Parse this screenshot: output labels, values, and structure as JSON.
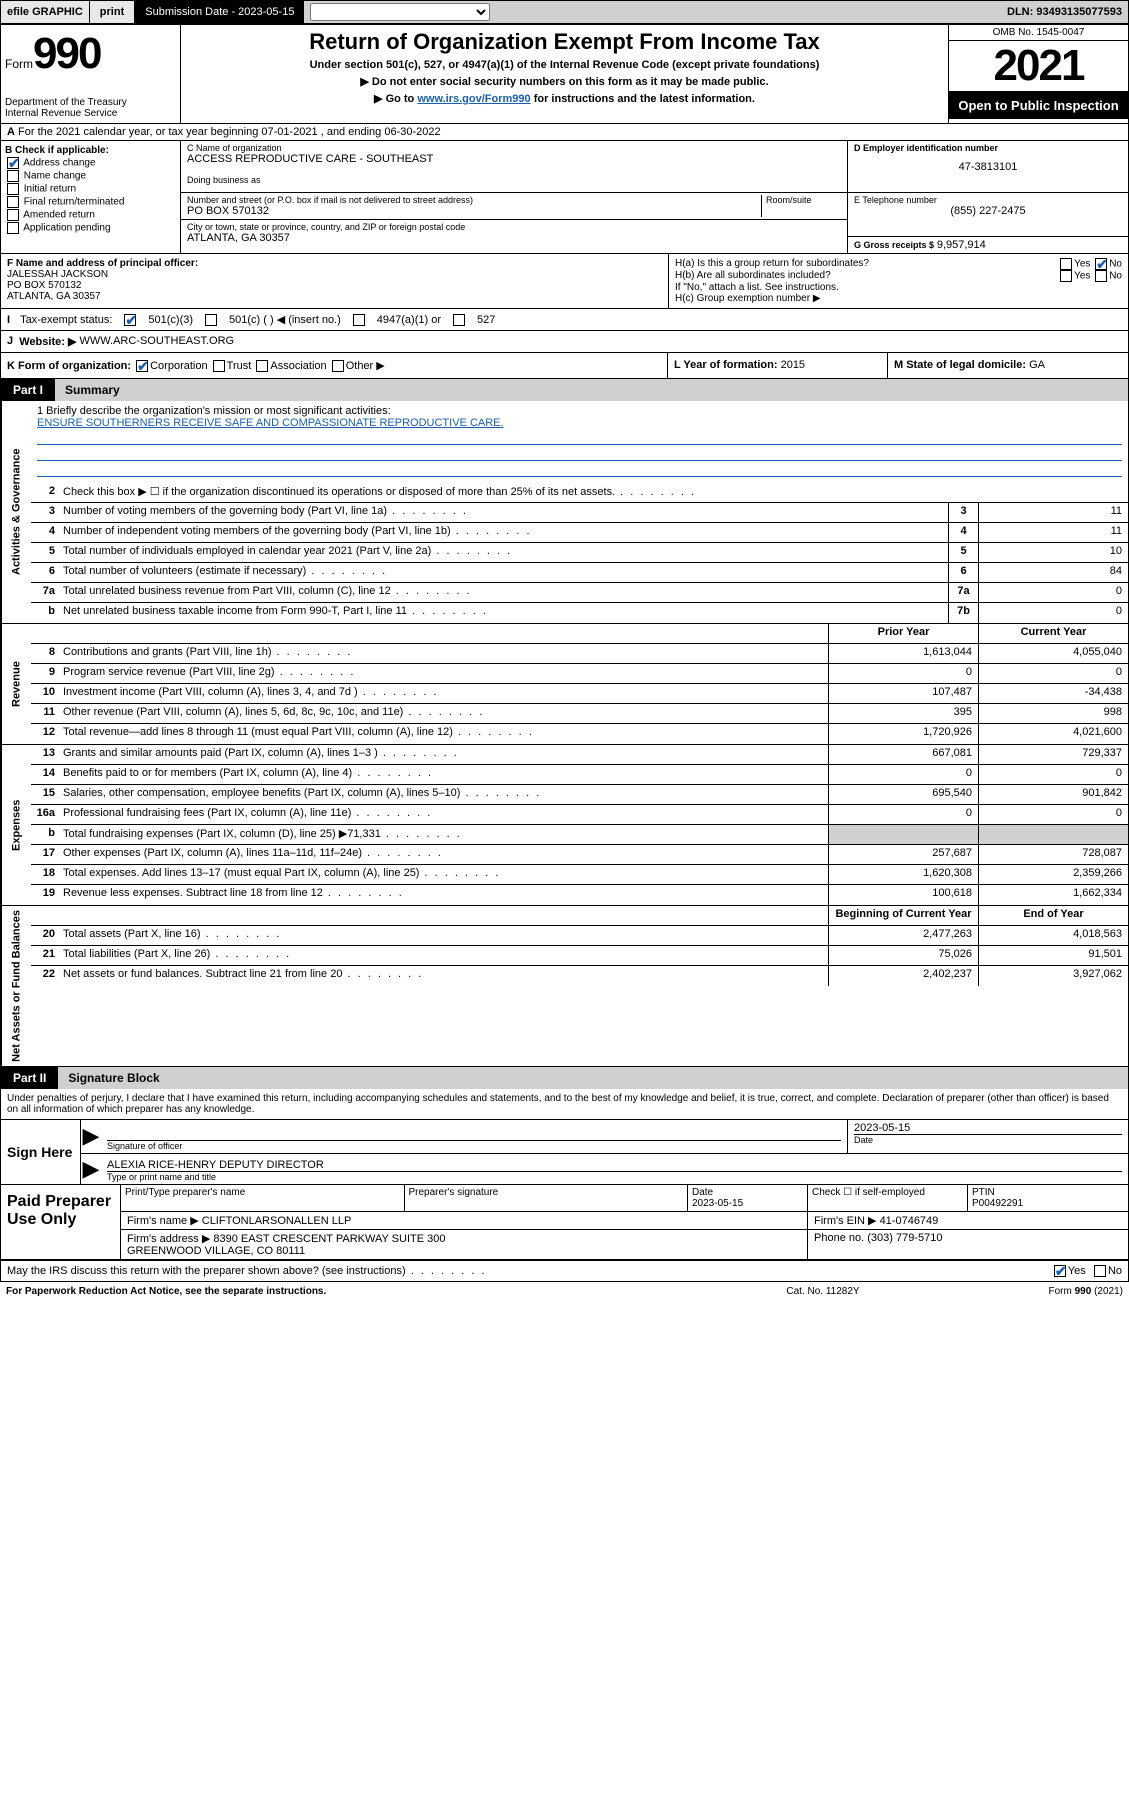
{
  "topbar": {
    "efile": "efile GRAPHIC",
    "print": "print",
    "subdate_label": "Submission Date - 2023-05-15",
    "dln": "DLN: 93493135077593"
  },
  "header": {
    "form_word": "Form",
    "form_num": "990",
    "dept": "Department of the Treasury\nInternal Revenue Service",
    "title": "Return of Organization Exempt From Income Tax",
    "sub": "Under section 501(c), 527, or 4947(a)(1) of the Internal Revenue Code (except private foundations)",
    "arrow1": "▶ Do not enter social security numbers on this form as it may be made public.",
    "arrow2_pre": "▶ Go to ",
    "arrow2_link": "www.irs.gov/Form990",
    "arrow2_post": " for instructions and the latest information.",
    "omb": "OMB No. 1545-0047",
    "year": "2021",
    "open": "Open to Public Inspection"
  },
  "row_a": "For the 2021 calendar year, or tax year beginning 07-01-2021   , and ending 06-30-2022",
  "col_b": {
    "title": "B Check if applicable:",
    "items": [
      "Address change",
      "Name change",
      "Initial return",
      "Final return/terminated",
      "Amended return",
      "Application pending"
    ],
    "checked": [
      true,
      false,
      false,
      false,
      false,
      false
    ]
  },
  "col_c": {
    "name_lbl": "C Name of organization",
    "name": "ACCESS REPRODUCTIVE CARE - SOUTHEAST",
    "dba_lbl": "Doing business as",
    "dba": "",
    "addr_lbl": "Number and street (or P.O. box if mail is not delivered to street address)",
    "room_lbl": "Room/suite",
    "addr": "PO BOX 570132",
    "city_lbl": "City or town, state or province, country, and ZIP or foreign postal code",
    "city": "ATLANTA, GA  30357"
  },
  "col_d": {
    "ein_lbl": "D Employer identification number",
    "ein": "47-3813101",
    "tel_lbl": "E Telephone number",
    "tel": "(855) 227-2475",
    "gross_lbl": "G Gross receipts $",
    "gross": "9,957,914"
  },
  "row_f": {
    "lbl": "F Name and address of principal officer:",
    "name": "JALESSAH JACKSON",
    "addr1": "PO BOX 570132",
    "addr2": "ATLANTA, GA  30357",
    "ha": "H(a)  Is this a group return for subordinates?",
    "hb": "H(b)  Are all subordinates included?",
    "hb_note": "If \"No,\" attach a list. See instructions.",
    "hc": "H(c)  Group exemption number ▶",
    "yes": "Yes",
    "no": "No"
  },
  "row_i": {
    "lbl": "Tax-exempt status:",
    "opts": [
      "501(c)(3)",
      "501(c) (  ) ◀ (insert no.)",
      "4947(a)(1) or",
      "527"
    ]
  },
  "row_j": {
    "lbl": "Website: ▶",
    "val": "WWW.ARC-SOUTHEAST.ORG"
  },
  "row_k": {
    "k1": "K Form of organization:",
    "k1_opts": [
      "Corporation",
      "Trust",
      "Association",
      "Other ▶"
    ],
    "k2_lbl": "L Year of formation:",
    "k2_val": "2015",
    "k3_lbl": "M State of legal domicile:",
    "k3_val": "GA"
  },
  "part1": {
    "num": "Part I",
    "title": "Summary"
  },
  "mission": {
    "lbl": "1   Briefly describe the organization's mission or most significant activities:",
    "val": "ENSURE SOUTHERNERS RECEIVE SAFE AND COMPASSIONATE REPRODUCTIVE CARE."
  },
  "gov_lines": [
    {
      "n": "2",
      "d": "Check this box ▶ ☐  if the organization discontinued its operations or disposed of more than 25% of its net assets.",
      "box": "",
      "amt": ""
    },
    {
      "n": "3",
      "d": "Number of voting members of the governing body (Part VI, line 1a)",
      "box": "3",
      "amt": "11"
    },
    {
      "n": "4",
      "d": "Number of independent voting members of the governing body (Part VI, line 1b)",
      "box": "4",
      "amt": "11"
    },
    {
      "n": "5",
      "d": "Total number of individuals employed in calendar year 2021 (Part V, line 2a)",
      "box": "5",
      "amt": "10"
    },
    {
      "n": "6",
      "d": "Total number of volunteers (estimate if necessary)",
      "box": "6",
      "amt": "84"
    },
    {
      "n": "7a",
      "d": "Total unrelated business revenue from Part VIII, column (C), line 12",
      "box": "7a",
      "amt": "0"
    },
    {
      "n": "b",
      "d": "Net unrelated business taxable income from Form 990-T, Part I, line 11",
      "box": "7b",
      "amt": "0"
    }
  ],
  "rev_hdr": {
    "prior": "Prior Year",
    "current": "Current Year"
  },
  "rev_lines": [
    {
      "n": "8",
      "d": "Contributions and grants (Part VIII, line 1h)",
      "p": "1,613,044",
      "c": "4,055,040"
    },
    {
      "n": "9",
      "d": "Program service revenue (Part VIII, line 2g)",
      "p": "0",
      "c": "0"
    },
    {
      "n": "10",
      "d": "Investment income (Part VIII, column (A), lines 3, 4, and 7d )",
      "p": "107,487",
      "c": "-34,438"
    },
    {
      "n": "11",
      "d": "Other revenue (Part VIII, column (A), lines 5, 6d, 8c, 9c, 10c, and 11e)",
      "p": "395",
      "c": "998"
    },
    {
      "n": "12",
      "d": "Total revenue—add lines 8 through 11 (must equal Part VIII, column (A), line 12)",
      "p": "1,720,926",
      "c": "4,021,600"
    }
  ],
  "exp_lines": [
    {
      "n": "13",
      "d": "Grants and similar amounts paid (Part IX, column (A), lines 1–3 )",
      "p": "667,081",
      "c": "729,337"
    },
    {
      "n": "14",
      "d": "Benefits paid to or for members (Part IX, column (A), line 4)",
      "p": "0",
      "c": "0"
    },
    {
      "n": "15",
      "d": "Salaries, other compensation, employee benefits (Part IX, column (A), lines 5–10)",
      "p": "695,540",
      "c": "901,842"
    },
    {
      "n": "16a",
      "d": "Professional fundraising fees (Part IX, column (A), line 11e)",
      "p": "0",
      "c": "0"
    },
    {
      "n": "b",
      "d": "Total fundraising expenses (Part IX, column (D), line 25) ▶71,331",
      "p": "",
      "c": "",
      "shaded": true
    },
    {
      "n": "17",
      "d": "Other expenses (Part IX, column (A), lines 11a–11d, 11f–24e)",
      "p": "257,687",
      "c": "728,087"
    },
    {
      "n": "18",
      "d": "Total expenses. Add lines 13–17 (must equal Part IX, column (A), line 25)",
      "p": "1,620,308",
      "c": "2,359,266"
    },
    {
      "n": "19",
      "d": "Revenue less expenses. Subtract line 18 from line 12",
      "p": "100,618",
      "c": "1,662,334"
    }
  ],
  "na_hdr": {
    "begin": "Beginning of Current Year",
    "end": "End of Year"
  },
  "na_lines": [
    {
      "n": "20",
      "d": "Total assets (Part X, line 16)",
      "p": "2,477,263",
      "c": "4,018,563"
    },
    {
      "n": "21",
      "d": "Total liabilities (Part X, line 26)",
      "p": "75,026",
      "c": "91,501"
    },
    {
      "n": "22",
      "d": "Net assets or fund balances. Subtract line 21 from line 20",
      "p": "2,402,237",
      "c": "3,927,062"
    }
  ],
  "part2": {
    "num": "Part II",
    "title": "Signature Block"
  },
  "sig": {
    "intro": "Under penalties of perjury, I declare that I have examined this return, including accompanying schedules and statements, and to the best of my knowledge and belief, it is true, correct, and complete. Declaration of preparer (other than officer) is based on all information of which preparer has any knowledge.",
    "sign_here": "Sign Here",
    "sig_officer": "Signature of officer",
    "date": "Date",
    "date_val": "2023-05-15",
    "name": "ALEXIA RICE-HENRY  DEPUTY DIRECTOR",
    "name_lbl": "Type or print name and title"
  },
  "paid": {
    "title": "Paid Preparer Use Only",
    "h1": "Print/Type preparer's name",
    "h2": "Preparer's signature",
    "h3": "Date",
    "h3v": "2023-05-15",
    "h4": "Check ☐ if self-employed",
    "h5": "PTIN",
    "h5v": "P00492291",
    "firm_lbl": "Firm's name    ▶",
    "firm": "CLIFTONLARSONALLEN LLP",
    "ein_lbl": "Firm's EIN ▶",
    "ein": "41-0746749",
    "addr_lbl": "Firm's address ▶",
    "addr": "8390 EAST CRESCENT PARKWAY SUITE 300\nGREENWOOD VILLAGE, CO  80111",
    "phone_lbl": "Phone no.",
    "phone": "(303) 779-5710"
  },
  "discuss": {
    "q": "May the IRS discuss this return with the preparer shown above? (see instructions)",
    "yes": "Yes",
    "no": "No"
  },
  "footer": {
    "f1": "For Paperwork Reduction Act Notice, see the separate instructions.",
    "f2": "Cat. No. 11282Y",
    "f3": "Form 990 (2021)"
  },
  "vtabs": {
    "gov": "Activities & Governance",
    "rev": "Revenue",
    "exp": "Expenses",
    "na": "Net Assets or Fund Balances"
  }
}
